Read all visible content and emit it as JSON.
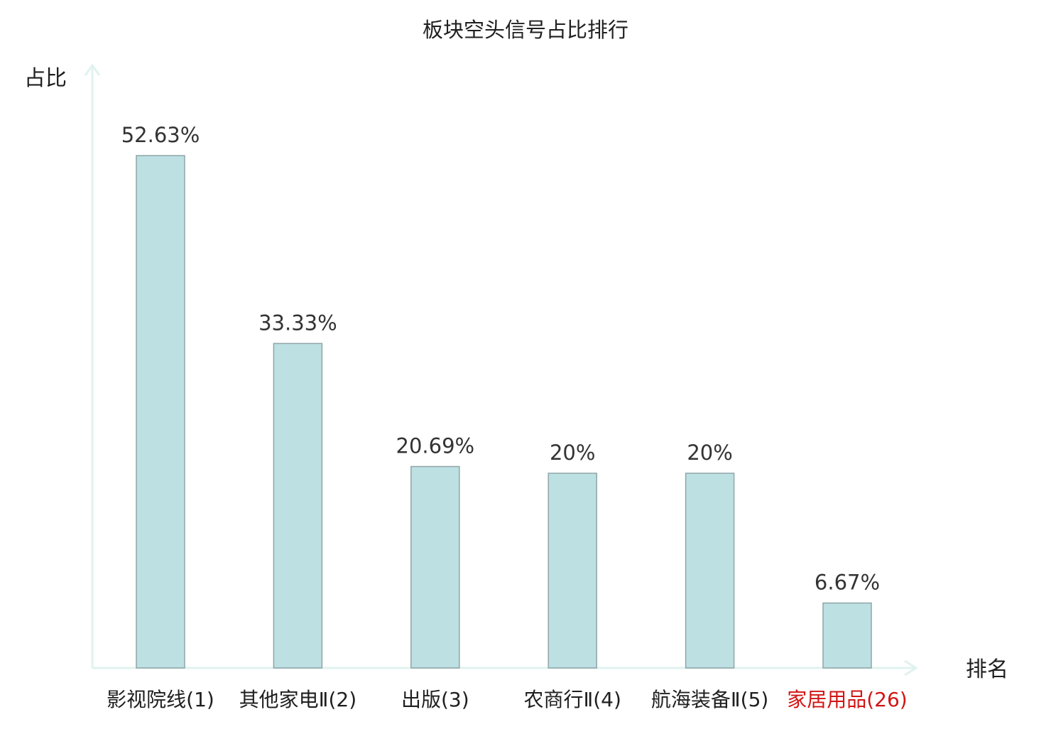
{
  "chart_data": {
    "type": "bar",
    "title": "板块空头信号占比排行",
    "ylabel": "占比",
    "xlabel": "排名",
    "ylim": [
      0,
      60
    ],
    "grid": false,
    "categories": [
      {
        "name": "影视院线",
        "rank": "(1)",
        "highlight": false
      },
      {
        "name": "其他家电Ⅱ",
        "rank": "(2)",
        "highlight": false
      },
      {
        "name": "出版",
        "rank": "(3)",
        "highlight": false
      },
      {
        "name": "农商行Ⅱ",
        "rank": "(4)",
        "highlight": false
      },
      {
        "name": "航海装备Ⅱ",
        "rank": "(5)",
        "highlight": false
      },
      {
        "name": "家居用品",
        "rank": "(26)",
        "highlight": true
      }
    ],
    "values": [
      52.63,
      33.33,
      20.69,
      20,
      20,
      6.67
    ],
    "value_labels": [
      "52.63%",
      "33.33%",
      "20.69%",
      "20%",
      "20%",
      "6.67%"
    ],
    "colors": {
      "bar_fill": "#bde0e3",
      "bar_stroke": "#8fa5a8",
      "axis": "#e0f2ef",
      "highlight_text": "#d21414"
    }
  }
}
